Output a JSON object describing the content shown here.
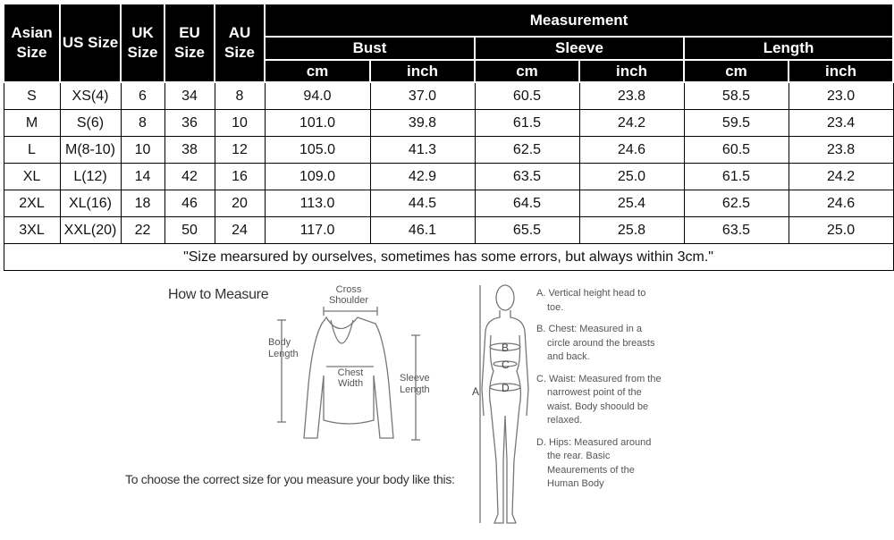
{
  "table": {
    "headers": {
      "asian": "Asian Size",
      "us": "US Size",
      "uk": "UK Size",
      "eu": "EU Size",
      "au": "AU Size",
      "measurement": "Measurement",
      "bust": "Bust",
      "sleeve": "Sleeve",
      "length": "Length",
      "cm": "cm",
      "inch": "inch"
    },
    "rows": [
      [
        "S",
        "XS(4)",
        "6",
        "34",
        "8",
        "94.0",
        "37.0",
        "60.5",
        "23.8",
        "58.5",
        "23.0"
      ],
      [
        "M",
        "S(6)",
        "8",
        "36",
        "10",
        "101.0",
        "39.8",
        "61.5",
        "24.2",
        "59.5",
        "23.4"
      ],
      [
        "L",
        "M(8-10)",
        "10",
        "38",
        "12",
        "105.0",
        "41.3",
        "62.5",
        "24.6",
        "60.5",
        "23.8"
      ],
      [
        "XL",
        "L(12)",
        "14",
        "42",
        "16",
        "109.0",
        "42.9",
        "63.5",
        "25.0",
        "61.5",
        "24.2"
      ],
      [
        "2XL",
        "XL(16)",
        "18",
        "46",
        "20",
        "113.0",
        "44.5",
        "64.5",
        "25.4",
        "62.5",
        "24.6"
      ],
      [
        "3XL",
        "XXL(20)",
        "22",
        "50",
        "24",
        "117.0",
        "46.1",
        "65.5",
        "25.8",
        "63.5",
        "25.0"
      ]
    ],
    "note": "\"Size mearsured by ourselves, sometimes has some errors, but always within 3cm.\""
  },
  "how_to": {
    "title": "How to Measure",
    "cross_shoulder": "Cross Shoulder",
    "body_length": "Body Length",
    "chest_width": "Chest Width",
    "sleeve_length": "Sleeve Length",
    "instruction": "To choose the correct size for you measure your body like this:"
  },
  "body": {
    "labels": [
      "A",
      "B",
      "C",
      "D"
    ],
    "legend": [
      "A. Vertical height head to toe.",
      "B. Chest: Measured in a circle around the breasts and back.",
      "C. Waist: Measured from the narrowest point of the waist. Body shoould be relaxed.",
      "D. Hips: Measured around the rear. Basic Meaurements of the Human Body"
    ]
  }
}
